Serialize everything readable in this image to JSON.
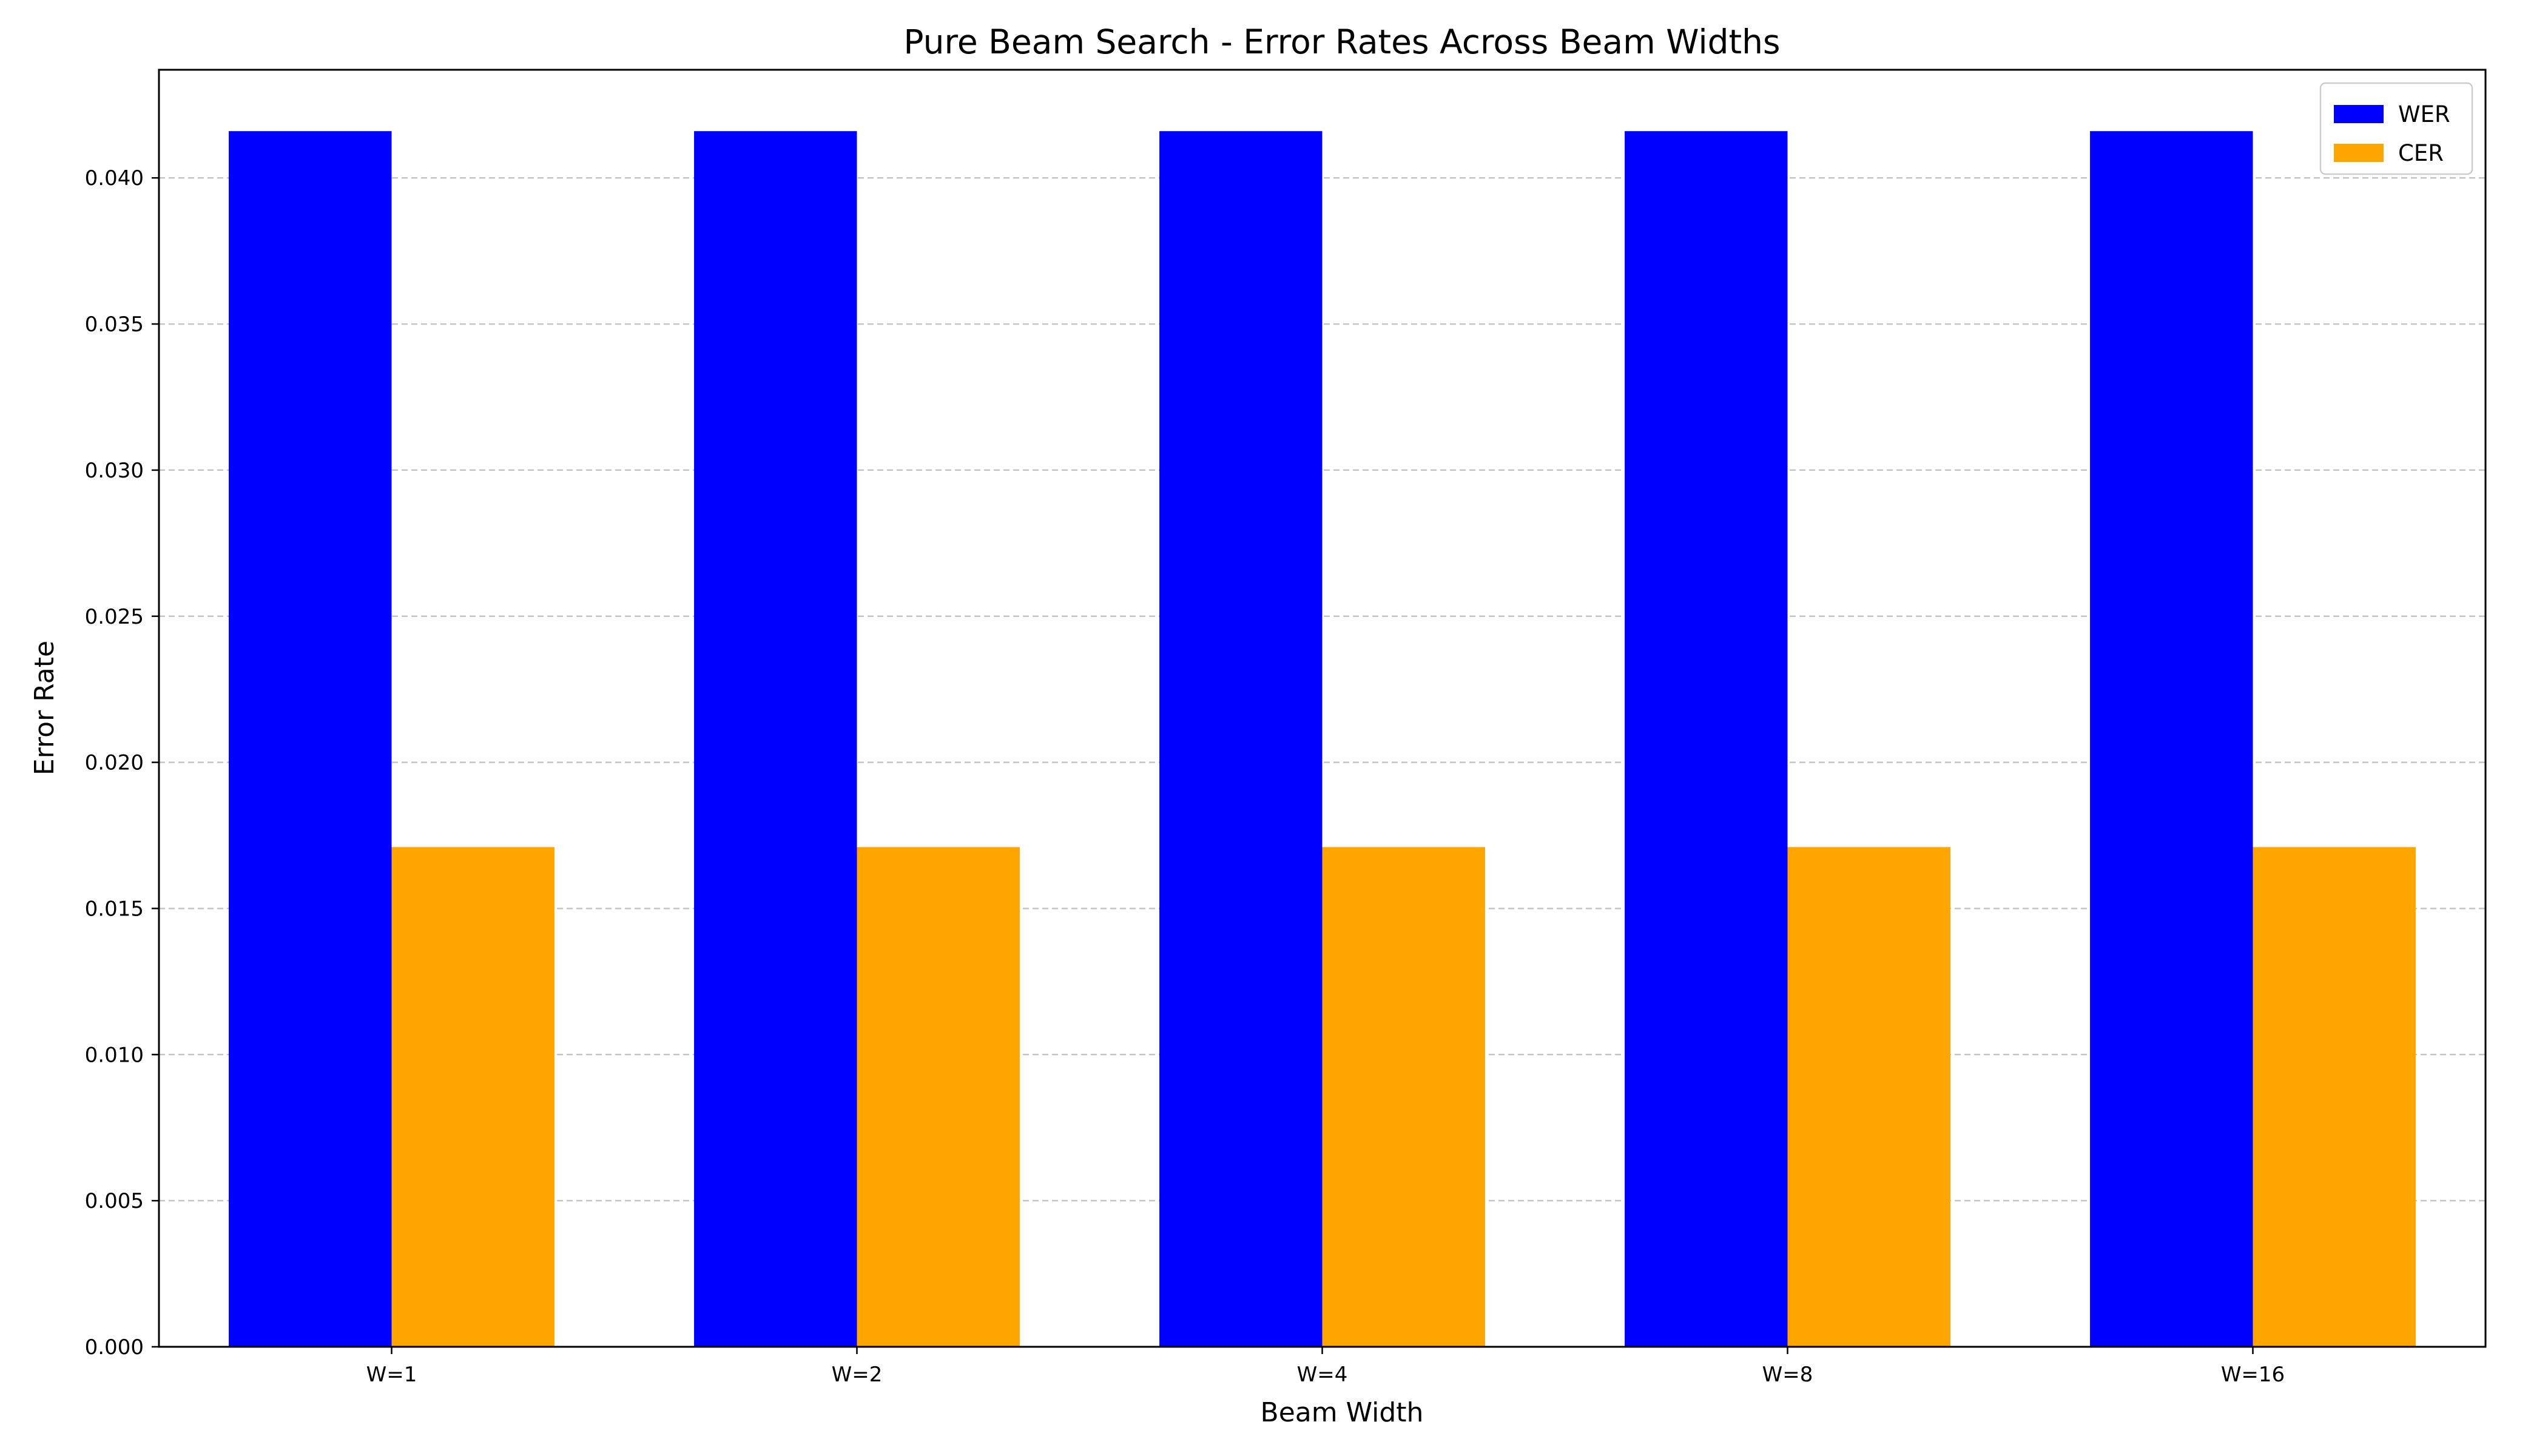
{
  "chart_data": {
    "type": "bar",
    "title": "Pure Beam Search - Error Rates Across Beam Widths",
    "xlabel": "Beam Width",
    "ylabel": "Error Rate",
    "categories": [
      "W=1",
      "W=2",
      "W=4",
      "W=8",
      "W=16"
    ],
    "series": [
      {
        "name": "WER",
        "color": "#0000ff",
        "values": [
          0.0416,
          0.0416,
          0.0416,
          0.0416,
          0.0416
        ]
      },
      {
        "name": "CER",
        "color": "#ffa500",
        "values": [
          0.0171,
          0.0171,
          0.0171,
          0.0171,
          0.0171
        ]
      }
    ],
    "ylim": [
      0,
      0.0437
    ],
    "yticks": [
      "0.000",
      "0.005",
      "0.010",
      "0.015",
      "0.020",
      "0.025",
      "0.030",
      "0.035",
      "0.040"
    ],
    "grid": "y-dashed",
    "legend_position": "top-right"
  }
}
